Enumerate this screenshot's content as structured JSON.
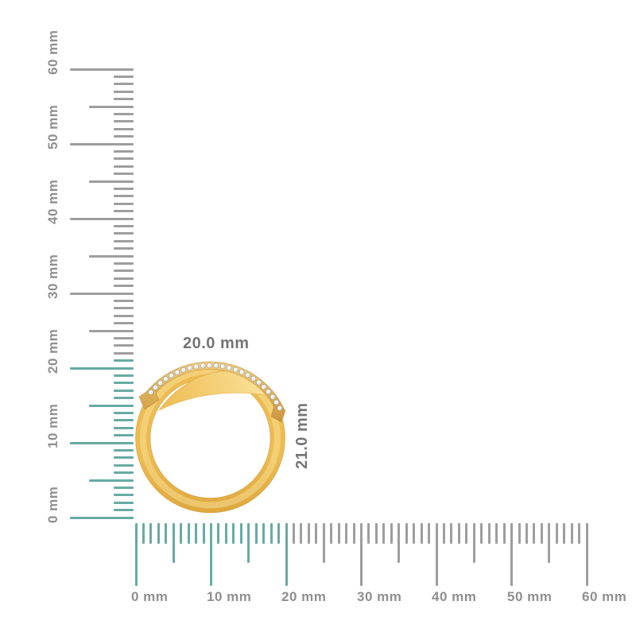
{
  "page": {
    "background_color": "#ffffff",
    "description": "Jewelry dimension image: yellow-gold diamond bypass ring shown in profile between a vertical and a horizontal millimeter ruler"
  },
  "colors": {
    "tick_gray": "#9e9e9e",
    "highlight_teal": "#67aba4",
    "ruler_label_gray": "#8f8f8f",
    "dimension_label_gray": "#757575",
    "gold_light": "#fbe7a4",
    "gold_face": "#f5d17a",
    "gold_mid": "#edbc50",
    "gold_deep": "#dda63d",
    "gold_dark": "#c6923a",
    "diamond_white": "#fdfdfd",
    "diamond_edge": "#a8a8a8"
  },
  "vertical_ruler": {
    "unit": "mm",
    "min_mm": 0,
    "max_mm": 60,
    "minor_step_mm": 1,
    "medium_step_mm": 5,
    "major_step_mm": 10,
    "highlight_to_mm": 21,
    "labels": [
      "0 mm",
      "10 mm",
      "20 mm",
      "30 mm",
      "40 mm",
      "50 mm",
      "60 mm"
    ]
  },
  "horizontal_ruler": {
    "unit": "mm",
    "min_mm": 0,
    "max_mm": 60,
    "minor_step_mm": 1,
    "medium_step_mm": 5,
    "major_step_mm": 10,
    "highlight_to_mm": 20,
    "labels": [
      "0 mm",
      "10 mm",
      "20 mm",
      "30 mm",
      "40 mm",
      "50 mm",
      "60 mm"
    ]
  },
  "ring": {
    "name": "gold-diamond-bypass-ring",
    "metal": "yellow gold",
    "diamond_count": 24,
    "width_label": "20.0 mm",
    "height_label": "21.0 mm"
  }
}
